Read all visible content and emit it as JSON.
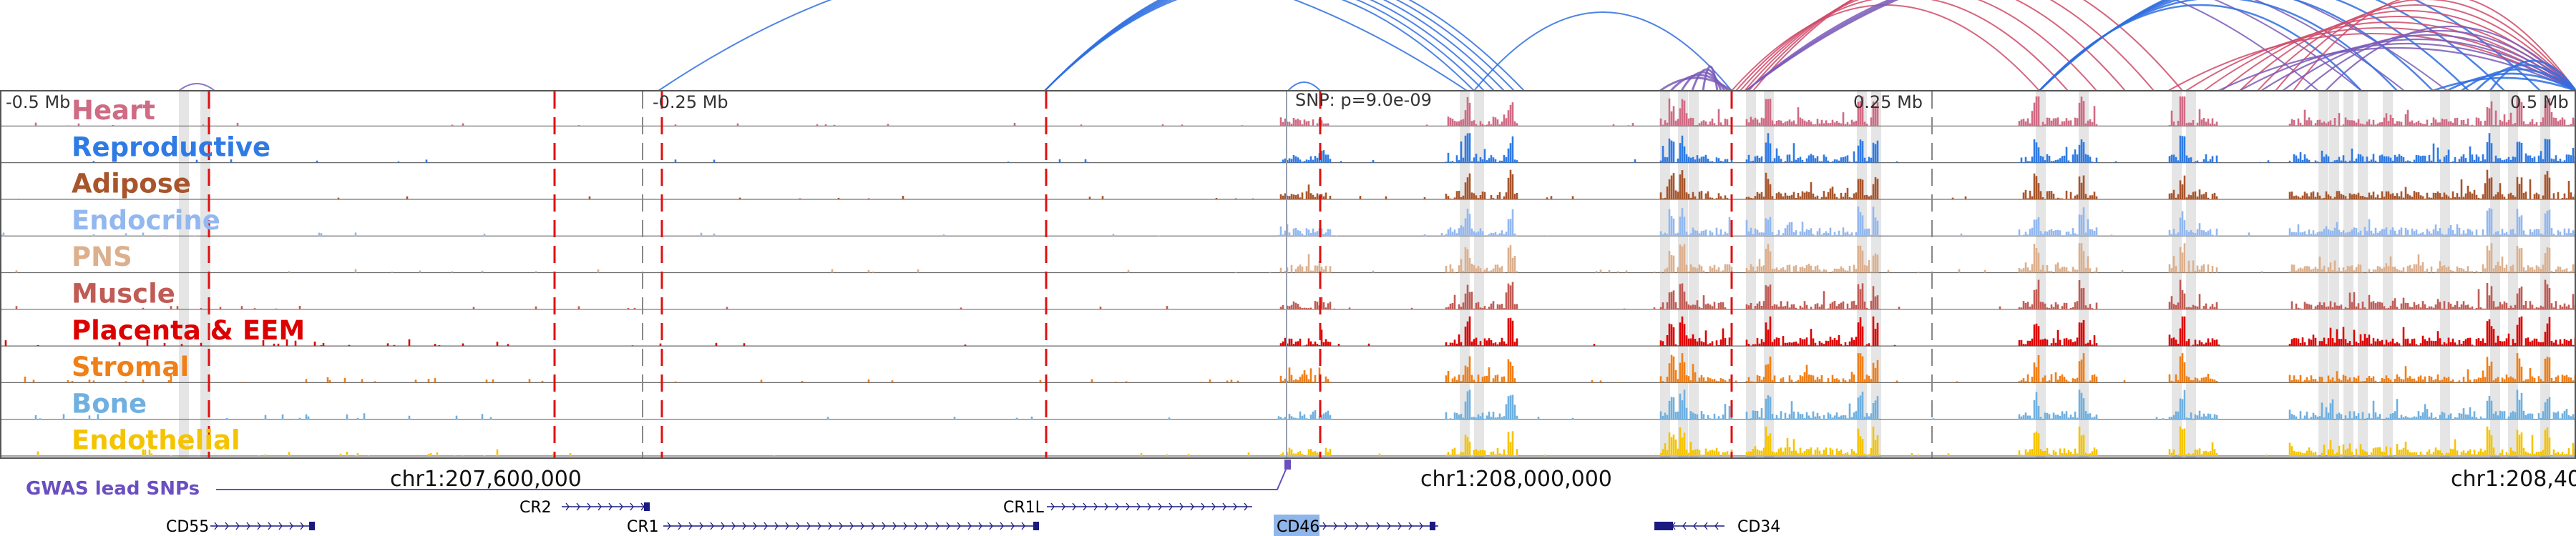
{
  "colors": {
    "link_blue": "#2f6fe0",
    "link_red": "#d04a6a",
    "link_purple": "#7a5ab8",
    "marker_red": "#e01010",
    "highlight": "#dcdcdc",
    "snp_purple": "#6a4fc0",
    "gene": "#1a1a80",
    "cd46_highlight": "#8fb6ea"
  },
  "scale": {
    "left_label": "-0.5 Mb",
    "mid_left_label": "-0.25 Mb",
    "snp_label": "SNP: p=9.0e-09",
    "mid_right_label": "0.25 Mb",
    "right_label": "0.5 Mb"
  },
  "tracks": [
    {
      "name": "Heart",
      "color": "#cf6b84"
    },
    {
      "name": "Reproductive",
      "color": "#2f7be5"
    },
    {
      "name": "Adipose",
      "color": "#a8552c"
    },
    {
      "name": "Endocrine",
      "color": "#92b8f0"
    },
    {
      "name": "PNS",
      "color": "#dcb08e"
    },
    {
      "name": "Muscle",
      "color": "#c05c55"
    },
    {
      "name": "Placenta & EEM",
      "color": "#dd0000"
    },
    {
      "name": "Stromal",
      "color": "#f07f18"
    },
    {
      "name": "Bone",
      "color": "#6fb0e0"
    },
    {
      "name": "Endothelial",
      "color": "#f5c400"
    }
  ],
  "coords": {
    "left": "chr1:207,600,000",
    "mid": "chr1:208,000,000",
    "right": "chr1:208,40"
  },
  "gwas_label": "GWAS lead SNPs",
  "genes": [
    "CD55",
    "CR2",
    "CR1",
    "CR1L",
    "CD46",
    "CD34"
  ]
}
